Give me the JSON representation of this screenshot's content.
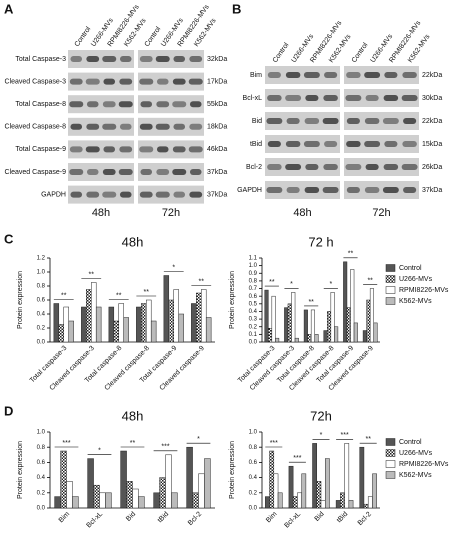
{
  "panels": [
    "A",
    "B",
    "C",
    "D"
  ],
  "blots": [
    {
      "lanes": [
        "Control",
        "U266-MVs",
        "RPMI8226-MVs",
        "K562-MVs"
      ],
      "times": [
        "48h",
        "72h"
      ],
      "rows": [
        {
          "label": "Total Caspase-3",
          "kda": "32kDa"
        },
        {
          "label": "Cleaved Caspase-3",
          "kda": "17kDa"
        },
        {
          "label": "Total Caspase-8",
          "kda": "55kDa"
        },
        {
          "label": "Cleaved Caspase-8",
          "kda": "18kDa"
        },
        {
          "label": "Total Caspase-9",
          "kda": "46kDa"
        },
        {
          "label": "Cleaved Caspase-9",
          "kda": "37kDa"
        },
        {
          "label": "GAPDH",
          "kda": "37kDa"
        }
      ]
    },
    {
      "lanes": [
        "Control",
        "U266-MVs",
        "RPMI8226-MVs",
        "K562-MVs"
      ],
      "times": [
        "48h",
        "72h"
      ],
      "rows": [
        {
          "label": "Bim",
          "kda": "22kDa"
        },
        {
          "label": "Bcl-xL",
          "kda": "30kDa"
        },
        {
          "label": "Bid",
          "kda": "22kDa"
        },
        {
          "label": "tBid",
          "kda": "15kDa"
        },
        {
          "label": "Bcl-2",
          "kda": "26kDa"
        },
        {
          "label": "GAPDH",
          "kda": "37kDa"
        }
      ]
    }
  ],
  "chart_data": [
    {
      "type": "bar",
      "title": "48h",
      "y_label": "Protein expression",
      "categories": [
        "Total caspase-3",
        "Cleaved caspase-3",
        "Total caspase-8",
        "Cleaved caspase-8",
        "Total caspase-9",
        "Cleaved caspase-9"
      ],
      "series": [
        {
          "name": "Control",
          "color": "#555555",
          "values": [
            0.55,
            0.5,
            0.5,
            0.5,
            0.95,
            0.55
          ]
        },
        {
          "name": "U266-MVs",
          "color": "#222222",
          "pattern": "checker",
          "values": [
            0.25,
            0.75,
            0.3,
            0.55,
            0.6,
            0.7
          ]
        },
        {
          "name": "RPMI8226-MVs",
          "color": "#ffffff",
          "values": [
            0.5,
            0.85,
            0.55,
            0.6,
            0.75,
            0.75
          ]
        },
        {
          "name": "K562-MVs",
          "color": "#bbbbbb",
          "values": [
            0.3,
            0.5,
            0.35,
            0.3,
            0.4,
            0.35
          ]
        }
      ],
      "ylim": [
        0,
        1.2
      ],
      "yticks": [
        {
          "value": 0,
          "label": "0.0"
        },
        {
          "value": 0.2,
          "label": "0.2"
        },
        {
          "value": 0.4,
          "label": "0.4"
        },
        {
          "value": 0.6,
          "label": "0.6"
        },
        {
          "value": 0.8,
          "label": "0.8"
        },
        {
          "value": 1,
          "label": "1.0"
        },
        {
          "value": 1.2,
          "label": "1.2"
        }
      ],
      "annotations": [
        {
          "category": 0,
          "text": "**"
        },
        {
          "category": 1,
          "text": "**"
        },
        {
          "category": 2,
          "text": "**"
        },
        {
          "category": 3,
          "text": "**"
        },
        {
          "category": 4,
          "text": "*"
        },
        {
          "category": 5,
          "text": "**"
        }
      ]
    },
    {
      "type": "bar",
      "title": "72 h",
      "y_label": "Protein expression",
      "legend": "outside-right",
      "categories": [
        "Total caspase-3",
        "Cleaved caspase-3",
        "Total caspase-8",
        "Cleaved caspase-8",
        "Total caspase-9",
        "Cleaved caspase-9"
      ],
      "series": [
        {
          "name": "Control",
          "color": "#555555",
          "values": [
            0.68,
            0.45,
            0.42,
            0.15,
            1.05,
            0.15
          ]
        },
        {
          "name": "U266-MVs",
          "color": "#222222",
          "pattern": "checker",
          "values": [
            0.18,
            0.5,
            0.1,
            0.4,
            0.45,
            0.55
          ]
        },
        {
          "name": "RPMI8226-MVs",
          "color": "#ffffff",
          "values": [
            0.6,
            0.65,
            0.42,
            0.65,
            0.95,
            0.7
          ]
        },
        {
          "name": "K562-MVs",
          "color": "#bbbbbb",
          "values": [
            0.05,
            0.05,
            0.1,
            0.2,
            0.25,
            0.25
          ]
        }
      ],
      "ylim": [
        0,
        1.1
      ],
      "yticks": [
        {
          "value": 0,
          "label": "0.0"
        },
        {
          "value": 0.1,
          "label": "0.1"
        },
        {
          "value": 0.2,
          "label": "0.2"
        },
        {
          "value": 0.3,
          "label": "0.3"
        },
        {
          "value": 0.4,
          "label": "0.4"
        },
        {
          "value": 0.5,
          "label": "0.5"
        },
        {
          "value": 0.6,
          "label": "0.6"
        },
        {
          "value": 0.7,
          "label": "0.7"
        },
        {
          "value": 0.8,
          "label": "0.8"
        },
        {
          "value": 0.9,
          "label": "0.9"
        },
        {
          "value": 1,
          "label": "1.0"
        },
        {
          "value": 1.1,
          "label": "1.1"
        }
      ],
      "annotations": [
        {
          "category": 0,
          "text": "**"
        },
        {
          "category": 1,
          "text": "*"
        },
        {
          "category": 2,
          "text": "**"
        },
        {
          "category": 3,
          "text": "*"
        },
        {
          "category": 4,
          "text": "**"
        },
        {
          "category": 5,
          "text": "**"
        }
      ]
    },
    {
      "type": "bar",
      "title": "48h",
      "y_label": "Protein expression",
      "categories": [
        "Bim",
        "Bcl-xL",
        "Bid",
        "tBid",
        "Bcl-2"
      ],
      "series": [
        {
          "name": "Control",
          "color": "#555555",
          "values": [
            0.15,
            0.65,
            0.75,
            0.2,
            0.8
          ]
        },
        {
          "name": "U266-MVs",
          "color": "#222222",
          "pattern": "checker",
          "values": [
            0.75,
            0.3,
            0.35,
            0.4,
            0.2
          ]
        },
        {
          "name": "RPMI8226-MVs",
          "color": "#ffffff",
          "values": [
            0.35,
            0.2,
            0.25,
            0.7,
            0.45
          ]
        },
        {
          "name": "K562-MVs",
          "color": "#bbbbbb",
          "values": [
            0.15,
            0.2,
            0.15,
            0.2,
            0.65
          ]
        }
      ],
      "ylim": [
        0,
        1
      ],
      "yticks": [
        {
          "value": 0,
          "label": "0.0"
        },
        {
          "value": 0.2,
          "label": "0.2"
        },
        {
          "value": 0.4,
          "label": "0.4"
        },
        {
          "value": 0.6,
          "label": "0.6"
        },
        {
          "value": 0.8,
          "label": "0.8"
        },
        {
          "value": 1,
          "label": "1.0"
        }
      ],
      "annotations": [
        {
          "category": 0,
          "text": "***"
        },
        {
          "category": 1,
          "text": "*"
        },
        {
          "category": 2,
          "text": "**"
        },
        {
          "category": 3,
          "text": "***"
        },
        {
          "category": 4,
          "text": "*"
        }
      ]
    },
    {
      "type": "bar",
      "title": "72h",
      "y_label": "Protein expression",
      "legend": "outside-right",
      "categories": [
        "Bim",
        "Bcl-xL",
        "Bid",
        "tBid",
        "Bcl-2"
      ],
      "series": [
        {
          "name": "Control",
          "color": "#555555",
          "values": [
            0.15,
            0.55,
            0.85,
            0.1,
            0.8
          ]
        },
        {
          "name": "U266-MVs",
          "color": "#222222",
          "pattern": "checker",
          "values": [
            0.75,
            0.15,
            0.35,
            0.2,
            0.05
          ]
        },
        {
          "name": "RPMI8226-MVs",
          "color": "#ffffff",
          "values": [
            0.45,
            0.2,
            0.1,
            0.85,
            0.15
          ]
        },
        {
          "name": "K562-MVs",
          "color": "#bbbbbb",
          "values": [
            0.2,
            0.45,
            0.65,
            0.1,
            0.45
          ]
        }
      ],
      "ylim": [
        0,
        1
      ],
      "yticks": [
        {
          "value": 0,
          "label": "0.0"
        },
        {
          "value": 0.2,
          "label": "0.2"
        },
        {
          "value": 0.4,
          "label": "0.4"
        },
        {
          "value": 0.6,
          "label": "0.6"
        },
        {
          "value": 0.8,
          "label": "0.8"
        },
        {
          "value": 1,
          "label": "1.0"
        }
      ],
      "annotations": [
        {
          "category": 0,
          "text": "***"
        },
        {
          "category": 1,
          "text": "***"
        },
        {
          "category": 2,
          "text": "*"
        },
        {
          "category": 3,
          "text": "***"
        },
        {
          "category": 4,
          "text": "**"
        }
      ]
    }
  ]
}
